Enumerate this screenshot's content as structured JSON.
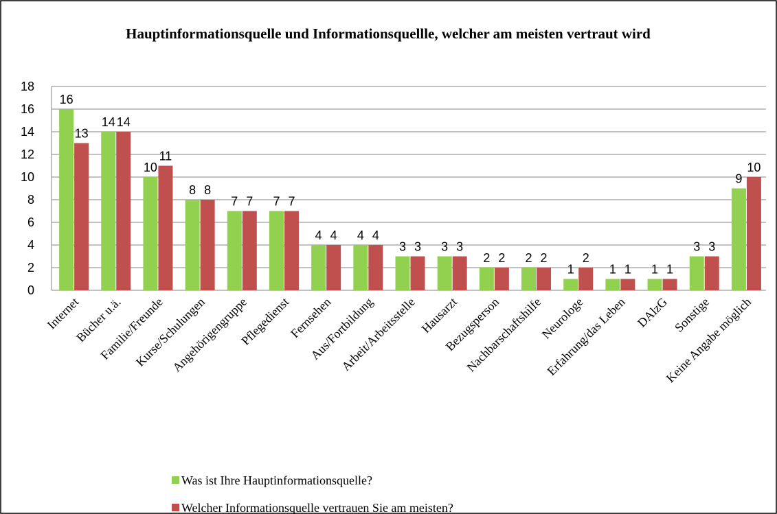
{
  "chart_data": {
    "type": "bar",
    "title": "Hauptinformationsquelle und Informationsquellle, welcher am meisten vertraut wird",
    "categories": [
      "Internet",
      "Bücher u.ä.",
      "Familie/Freunde",
      "Kurse/Schulungen",
      "Angehörigengruppe",
      "Pflegedienst",
      "Fernsehen",
      "Aus/Fortbildung",
      "Arbeit/Arbeitsstelle",
      "Hausarzt",
      "Bezugsperson",
      "Nachbarschaftshilfe",
      "Neurologe",
      "Erfahrung/das Leben",
      "DAlzG",
      "Sonstige",
      "Keine Angabe möglich"
    ],
    "series": [
      {
        "name": "Was ist Ihre Hauptinformationsquelle?",
        "color": "#92d050",
        "values": [
          16,
          14,
          10,
          8,
          7,
          7,
          4,
          4,
          3,
          3,
          2,
          2,
          1,
          1,
          1,
          3,
          9
        ]
      },
      {
        "name": "Welcher Informationsquelle vertrauen Sie am meisten?",
        "color": "#c0504d",
        "values": [
          13,
          14,
          11,
          8,
          7,
          7,
          4,
          4,
          3,
          3,
          2,
          2,
          2,
          1,
          1,
          3,
          10
        ]
      }
    ],
    "ylim": [
      0,
      18
    ],
    "yticks": [
      0,
      2,
      4,
      6,
      8,
      10,
      12,
      14,
      16,
      18
    ],
    "grid": true,
    "legend": "bottom"
  }
}
